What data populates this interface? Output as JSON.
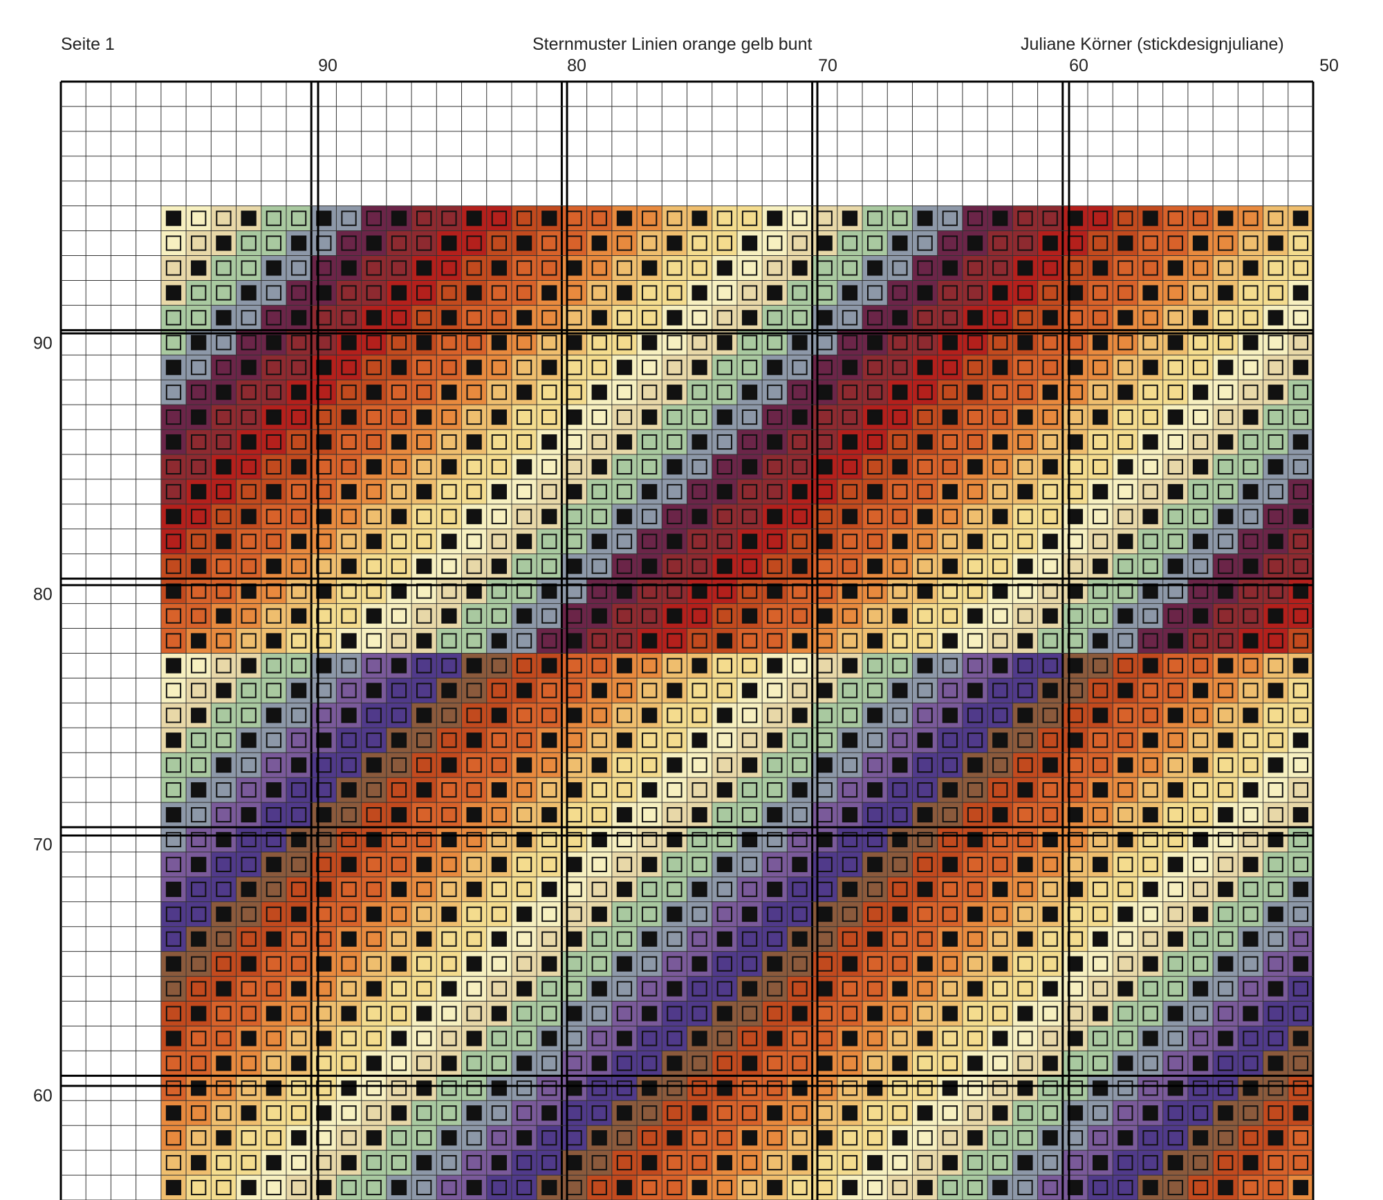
{
  "header": {
    "page_label": "Seite 1",
    "title": "Sternmuster Linien orange gelb bunt",
    "author": "Juliane Körner (stickdesignjuliane)"
  },
  "column_labels": [
    "90",
    "80",
    "70",
    "60",
    "50"
  ],
  "row_labels": [
    "90",
    "80",
    "70",
    "60"
  ],
  "chart_data": {
    "type": "cross-stitch pattern",
    "grid": {
      "columns": 50,
      "rows": 45,
      "major_every": 10
    },
    "x_axis_labels": [
      "90",
      "80",
      "70",
      "60",
      "50"
    ],
    "y_axis_labels": [
      "90",
      "80",
      "70",
      "60"
    ],
    "palette": [
      "#6b2548",
      "#8e2a30",
      "#b4201c",
      "#c24a1e",
      "#d8622a",
      "#e88a3e",
      "#efbe6e",
      "#f4dc8e",
      "#f7f0c0",
      "#e8d8a8",
      "#a9c9a0",
      "#8d98a8",
      "#7a5a9a",
      "#503a8a",
      "#8b5a3c",
      "#c48060",
      "#e0b090",
      "#f0d0b0",
      "#c89050",
      "#a05030"
    ]
  }
}
